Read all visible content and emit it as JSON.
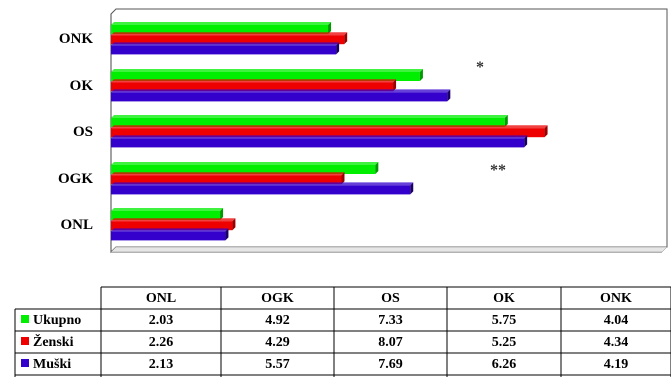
{
  "chart_data": {
    "type": "bar",
    "orientation": "horizontal",
    "categories": [
      "ONL",
      "OGK",
      "OS",
      "OK",
      "ONK"
    ],
    "series": [
      {
        "name": "Ukupno",
        "color": "#00ee00",
        "values": [
          2.03,
          4.92,
          7.33,
          5.75,
          4.04
        ]
      },
      {
        "name": "Ženski",
        "color": "#ee0000",
        "values": [
          2.26,
          4.29,
          8.07,
          5.25,
          4.34
        ]
      },
      {
        "name": "Muški",
        "color": "#3300cc",
        "values": [
          2.13,
          5.57,
          7.69,
          6.26,
          4.19
        ]
      }
    ],
    "annotations": [
      {
        "category": "OK",
        "text": "*"
      },
      {
        "category": "OGK",
        "text": "**"
      }
    ],
    "xlim": [
      0,
      10
    ],
    "grid": false,
    "data_table": true,
    "legend_placement": "data-table-rows"
  }
}
